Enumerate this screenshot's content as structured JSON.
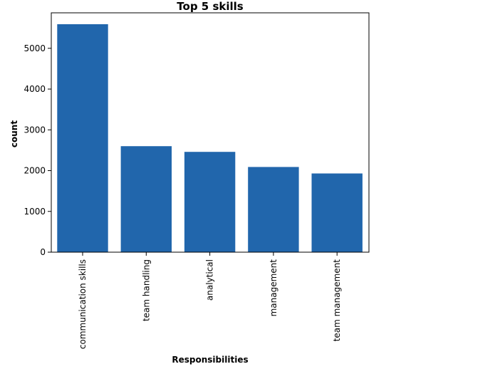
{
  "chart_data": {
    "type": "bar",
    "title": "Top 5 skills",
    "xlabel": "Responsibilities",
    "ylabel": "count",
    "categories": [
      "communication skills",
      "team handling",
      "analytical",
      "management",
      "team management"
    ],
    "values": [
      5590,
      2600,
      2460,
      2090,
      1930
    ],
    "ylim": [
      0,
      5870
    ],
    "yticks": [
      0,
      1000,
      2000,
      3000,
      4000,
      5000
    ],
    "bar_color": "#2166ac",
    "grid": false,
    "legend": "none"
  }
}
